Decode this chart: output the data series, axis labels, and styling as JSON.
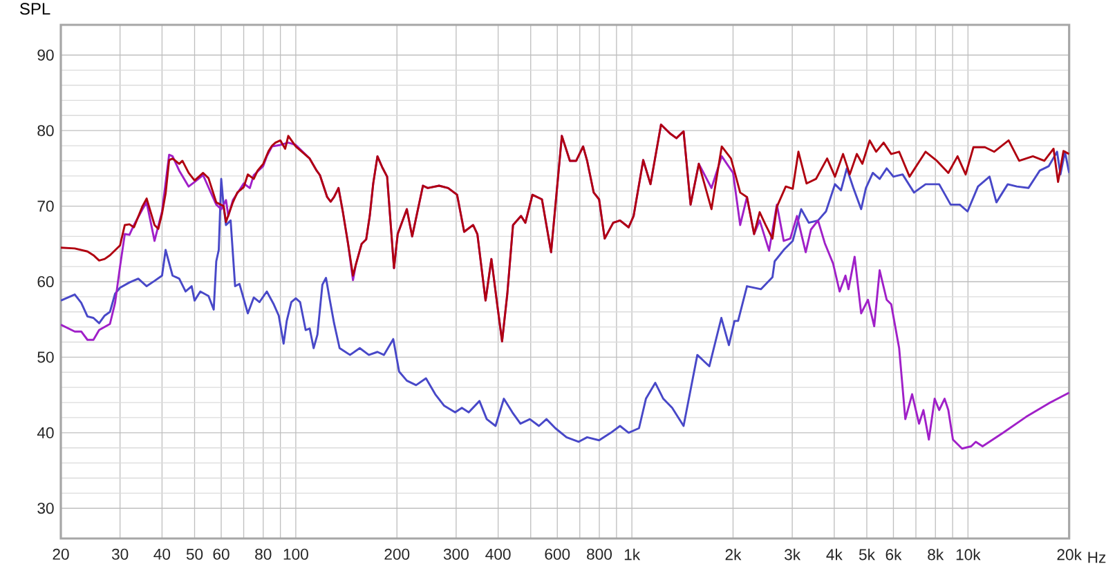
{
  "chart_data": {
    "type": "line",
    "ylabel": "SPL",
    "log": "x",
    "grid": true,
    "marker": "none",
    "line_style": "solid",
    "xlim": [
      20,
      20000
    ],
    "ylim": [
      26,
      94
    ],
    "xticks": [
      20,
      30,
      40,
      50,
      60,
      {
        "value": 70,
        "label": null
      },
      80,
      {
        "value": 90,
        "label": null
      },
      100,
      200,
      300,
      400,
      {
        "value": 500,
        "label": null
      },
      600,
      {
        "value": 700,
        "label": null
      },
      800,
      {
        "value": 900,
        "label": null
      },
      {
        "value": 1000,
        "label": "1k"
      },
      {
        "value": 2000,
        "label": "2k"
      },
      {
        "value": 3000,
        "label": "3k"
      },
      {
        "value": 4000,
        "label": "4k"
      },
      {
        "value": 5000,
        "label": "5k"
      },
      {
        "value": 6000,
        "label": "6k"
      },
      {
        "value": 7000,
        "label": null
      },
      {
        "value": 8000,
        "label": "8k"
      },
      {
        "value": 9000,
        "label": null
      },
      {
        "value": 10000,
        "label": "10k"
      },
      {
        "value": 20000,
        "label": "20k"
      }
    ],
    "xlabel": "Hz",
    "yticks": [
      30,
      40,
      50,
      60,
      70,
      80,
      90
    ],
    "series": [
      {
        "color": "#4848c8",
        "x": [
          20,
          22,
          23,
          24,
          25,
          26,
          27,
          28,
          29,
          30,
          32,
          34,
          36,
          38,
          40,
          41,
          43,
          45,
          47,
          49,
          50,
          52,
          55,
          57,
          58,
          59,
          60,
          61,
          62,
          64,
          66,
          68,
          72,
          75,
          78,
          82,
          86,
          89,
          92,
          94,
          97,
          100,
          103,
          107,
          110,
          113,
          116,
          120,
          123,
          126,
          130,
          135,
          145,
          155,
          165,
          175,
          183,
          195,
          203,
          214,
          228,
          244,
          260,
          276,
          298,
          312,
          327,
          352,
          370,
          393,
          416,
          441,
          466,
          497,
          529,
          557,
          592,
          639,
          694,
          736,
          799,
          866,
          922,
          978,
          1050,
          1101,
          1174,
          1240,
          1318,
          1425,
          1566,
          1700,
          1846,
          1944,
          2020,
          2070,
          2200,
          2420,
          2620,
          2660,
          2830,
          3010,
          3190,
          3360,
          3580,
          3780,
          4020,
          4190,
          4360,
          4560,
          4810,
          4970,
          5210,
          5460,
          5730,
          6000,
          6390,
          6910,
          7480,
          8210,
          8880,
          9450,
          9970,
          10710,
          11590,
          12150,
          13130,
          13980,
          15130,
          16350,
          17400,
          18410,
          18840,
          19430,
          20000
        ],
        "values": [
          57.5,
          58.3,
          57.2,
          55.4,
          55.2,
          54.5,
          55.5,
          56,
          58.4,
          59.2,
          59.9,
          60.4,
          59.4,
          60.1,
          60.8,
          64.2,
          60.8,
          60.4,
          58.7,
          59.4,
          57.5,
          58.7,
          58.1,
          56.3,
          62.7,
          64.2,
          73.6,
          70,
          67.5,
          68.1,
          59.4,
          59.7,
          55.8,
          57.9,
          57.3,
          58.7,
          57,
          55.5,
          51.8,
          54.8,
          57.3,
          57.8,
          57.3,
          53.6,
          53.8,
          51.2,
          53,
          59.6,
          60.5,
          57.8,
          54.5,
          51.2,
          50.3,
          51.2,
          50.3,
          50.7,
          50.3,
          52.4,
          48.1,
          46.9,
          46.3,
          47.2,
          45.1,
          43.6,
          42.7,
          43.3,
          42.7,
          44.2,
          41.8,
          40.9,
          44.5,
          42.7,
          41.2,
          41.8,
          40.9,
          41.8,
          40.6,
          39.4,
          38.8,
          39.4,
          39,
          40,
          40.9,
          40,
          40.6,
          44.5,
          46.6,
          44.5,
          43.3,
          40.9,
          50.3,
          48.8,
          55.2,
          51.6,
          54.8,
          54.8,
          59.4,
          59,
          60.6,
          62.7,
          64.2,
          65.4,
          69.6,
          67.8,
          68.1,
          69.3,
          72.9,
          72.1,
          75,
          72.4,
          69.6,
          72.4,
          74.4,
          73.6,
          75,
          73.9,
          74.2,
          71.8,
          72.9,
          72.9,
          70.2,
          70.2,
          69.3,
          72.6,
          73.9,
          70.5,
          72.9,
          72.6,
          72.4,
          74.7,
          75.3,
          77.2,
          74.2,
          77.2,
          74.4
        ]
      },
      {
        "color": "#a020c8",
        "x": [
          20,
          22,
          23,
          24,
          25,
          26,
          28,
          29,
          30,
          31,
          32,
          33,
          35,
          36,
          38,
          40,
          42,
          43,
          45,
          48,
          50,
          53,
          56,
          58,
          60,
          62,
          63,
          65,
          70,
          73,
          75,
          80,
          82,
          85,
          90,
          95,
          100,
          110,
          115,
          118,
          124,
          127,
          130,
          134,
          138,
          143,
          148,
          151,
          157,
          162,
          166,
          170,
          175,
          181,
          187,
          196,
          201,
          214,
          222,
          239,
          247,
          267,
          284,
          302,
          317,
          337,
          347,
          367,
          382,
          397,
          411,
          426,
          443,
          468,
          482,
          506,
          540,
          575,
          619,
          654,
          683,
          716,
          736,
          770,
          799,
          830,
          880,
          922,
          978,
          1012,
          1081,
          1136,
          1221,
          1300,
          1357,
          1425,
          1495,
          1582,
          1725,
          1851,
          2000,
          2100,
          2200,
          2310,
          2400,
          2560,
          2700,
          2830,
          2960,
          3100,
          3290,
          3410,
          3580,
          3750,
          3970,
          4150,
          4320,
          4410,
          4600,
          4810,
          5040,
          5260,
          5460,
          5730,
          5910,
          6240,
          6510,
          6820,
          7150,
          7370,
          7650,
          7960,
          8210,
          8520,
          8740,
          9020,
          9600,
          10220,
          10550,
          11050,
          12730,
          14890,
          17400,
          20000
        ],
        "values": [
          54.3,
          53.4,
          53.4,
          52.3,
          52.3,
          53.6,
          54.4,
          57.2,
          62,
          66.3,
          66.2,
          67.5,
          69.6,
          70.5,
          65.4,
          69.3,
          76.8,
          76.6,
          74.7,
          72.6,
          73.2,
          74.1,
          71.7,
          70.2,
          69.6,
          70.8,
          68.7,
          70.8,
          73,
          72.4,
          74.1,
          75.3,
          76.6,
          77.9,
          78.1,
          78.4,
          78.1,
          76.3,
          74.8,
          74.1,
          71.2,
          70.6,
          71.2,
          72.4,
          69.3,
          65.1,
          60.2,
          62.3,
          65,
          65.6,
          68.7,
          73,
          76.6,
          75.1,
          73.9,
          61.8,
          66.3,
          69.6,
          66,
          72.7,
          72.4,
          72.7,
          72.4,
          71.5,
          66.6,
          67.5,
          66.3,
          57.5,
          63,
          57.2,
          52.1,
          58.4,
          67.5,
          68.7,
          67.8,
          71.5,
          70.9,
          63.9,
          79.3,
          76,
          76,
          77.9,
          76,
          71.8,
          70.9,
          65.7,
          67.8,
          68.1,
          67.2,
          68.7,
          76.1,
          72.9,
          80.8,
          79.6,
          79,
          79.9,
          70.2,
          75.6,
          72.4,
          76.6,
          74.4,
          67.5,
          71.2,
          66.3,
          68.1,
          64.1,
          70.2,
          65.4,
          65.7,
          68.7,
          63.9,
          66.9,
          68.1,
          65.1,
          62.4,
          58.7,
          60.8,
          59,
          63.3,
          55.8,
          57.6,
          54.1,
          61.5,
          57.6,
          57,
          51.2,
          41.8,
          45.1,
          41.2,
          43,
          39.1,
          44.5,
          43,
          44.5,
          43,
          39.1,
          37.9,
          38.2,
          38.8,
          38.2,
          40,
          42.1,
          43.9,
          45.3
        ]
      },
      {
        "color": "#b00010",
        "x": [
          20,
          22,
          24,
          25,
          26,
          27,
          28,
          30,
          31,
          32,
          33,
          35,
          36,
          38,
          39,
          40,
          41,
          42,
          43,
          45,
          46,
          48,
          50,
          53,
          55,
          58,
          61,
          62,
          65,
          67,
          70,
          72,
          75,
          77,
          80,
          83,
          85,
          87,
          90,
          93,
          95,
          100,
          110,
          115,
          118,
          124,
          127,
          130,
          134,
          138,
          143,
          148,
          151,
          157,
          162,
          166,
          170,
          175,
          181,
          187,
          196,
          201,
          214,
          222,
          239,
          247,
          267,
          284,
          302,
          317,
          337,
          347,
          367,
          382,
          397,
          411,
          426,
          443,
          468,
          482,
          506,
          540,
          575,
          619,
          654,
          683,
          716,
          736,
          770,
          799,
          830,
          880,
          922,
          978,
          1012,
          1081,
          1136,
          1221,
          1300,
          1357,
          1425,
          1495,
          1582,
          1725,
          1851,
          1972,
          2100,
          2200,
          2310,
          2400,
          2500,
          2620,
          2700,
          2870,
          3010,
          3130,
          3310,
          3530,
          3810,
          4020,
          4250,
          4450,
          4670,
          4850,
          5100,
          5330,
          5610,
          5910,
          6240,
          6700,
          7480,
          8080,
          8740,
          9310,
          9840,
          10380,
          11230,
          11960,
          13210,
          14200,
          15600,
          16870,
          17970,
          18540,
          19240,
          20000
        ],
        "values": [
          64.5,
          64.4,
          64,
          63.5,
          62.8,
          63,
          63.5,
          64.8,
          67.5,
          67.6,
          67.2,
          70,
          71,
          67.5,
          67,
          69,
          71.7,
          76.1,
          76.3,
          75.6,
          76,
          74.4,
          73.4,
          74.4,
          73.7,
          70.5,
          70,
          67.9,
          70.5,
          71.8,
          72.5,
          74.2,
          73.6,
          74.7,
          75.6,
          77.3,
          78,
          78.4,
          78.7,
          77.6,
          79.3,
          77.9,
          76.3,
          74.8,
          74.1,
          71.2,
          70.6,
          71.2,
          72.4,
          69.3,
          65.1,
          60.8,
          62.3,
          65,
          65.6,
          68.7,
          73,
          76.6,
          75.1,
          73.9,
          61.8,
          66.3,
          69.6,
          66,
          72.7,
          72.4,
          72.7,
          72.4,
          71.5,
          66.6,
          67.5,
          66.3,
          57.5,
          63,
          57.2,
          52.1,
          58.4,
          67.5,
          68.7,
          67.8,
          71.5,
          70.9,
          63.9,
          79.3,
          76,
          76,
          77.9,
          76,
          71.8,
          70.9,
          65.7,
          67.8,
          68.1,
          67.2,
          68.7,
          76.1,
          72.9,
          80.8,
          79.6,
          79,
          79.9,
          70.2,
          75.6,
          69.6,
          77.9,
          76.3,
          71.8,
          71.2,
          66.3,
          69.2,
          67.5,
          65.7,
          69.9,
          72.6,
          72.3,
          77.2,
          73,
          73.6,
          76.3,
          73.9,
          76.9,
          74.2,
          76.9,
          75.6,
          78.7,
          77.2,
          78.4,
          76.9,
          77.2,
          73.9,
          77.2,
          76,
          74.4,
          76.6,
          74.2,
          77.8,
          77.8,
          77.2,
          78.7,
          76,
          76.6,
          76,
          77.6,
          73.2,
          77.3,
          76.9
        ]
      }
    ]
  }
}
